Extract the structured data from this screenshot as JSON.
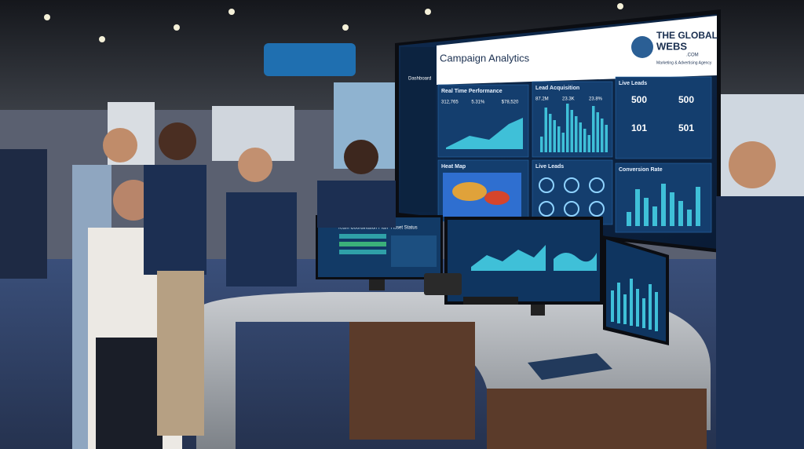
{
  "screen": {
    "sidebar": [
      "Dashboard"
    ],
    "title": "Campaign Analytics",
    "logo": {
      "line1": "THE GLOBAL",
      "line2": "WEBS",
      "tld": ".COM",
      "tagline": "Marketing & Advertising Agency"
    },
    "panels": [
      {
        "title": "Real Time Performance",
        "stats": [
          "312,765",
          "5.31%",
          "$78,520"
        ]
      },
      {
        "title": "Lead Acquisition",
        "stats": [
          "87.2M",
          "23.3K",
          "23.8%"
        ]
      },
      {
        "title": "Live Leads",
        "stats": [
          "500",
          "500",
          "101",
          "501"
        ]
      },
      {
        "title": "Heat Map"
      },
      {
        "title": "Live Leads"
      },
      {
        "title": "Conversion Rate"
      }
    ]
  },
  "monitor": {
    "panels": [
      "Team Coordination Plan",
      "Asset Status"
    ]
  }
}
